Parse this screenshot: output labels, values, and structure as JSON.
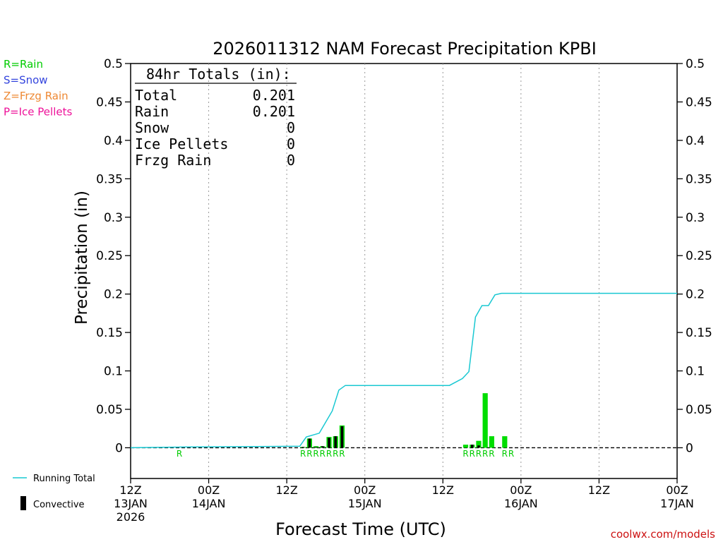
{
  "chart_data": {
    "type": "bar",
    "title": "2026011312 NAM Forecast Precipitation KPBI",
    "xlabel": "Forecast Time (UTC)",
    "ylabel": "Precipitation (in)",
    "ylim": [
      -0.04,
      0.5
    ],
    "yticks": [
      0,
      0.05,
      0.1,
      0.15,
      0.2,
      0.25,
      0.3,
      0.35,
      0.4,
      0.45,
      0.5
    ],
    "ytick_labels": [
      "0",
      "0.05",
      "0.1",
      "0.15",
      "0.2",
      "0.25",
      "0.3",
      "0.35",
      "0.4",
      "0.45",
      "0.5"
    ],
    "xlim_hours": [
      0,
      84
    ],
    "xticks": [
      {
        "hour": 0,
        "time": "12Z",
        "date": "13JAN",
        "year": "2026"
      },
      {
        "hour": 12,
        "time": "00Z",
        "date": "14JAN",
        "year": ""
      },
      {
        "hour": 24,
        "time": "12Z",
        "date": "",
        "year": ""
      },
      {
        "hour": 36,
        "time": "00Z",
        "date": "15JAN",
        "year": ""
      },
      {
        "hour": 48,
        "time": "12Z",
        "date": "",
        "year": ""
      },
      {
        "hour": 60,
        "time": "00Z",
        "date": "16JAN",
        "year": ""
      },
      {
        "hour": 72,
        "time": "12Z",
        "date": "",
        "year": ""
      },
      {
        "hour": 84,
        "time": "00Z",
        "date": "17JAN",
        "year": ""
      }
    ],
    "grid": "vertical dotted at 12-hour intervals",
    "bars": {
      "hours": [
        27,
        28,
        29,
        30,
        31,
        32,
        33,
        52,
        53,
        54,
        55,
        56,
        58
      ],
      "precip": [
        0.001,
        0.012,
        0.002,
        0.002,
        0.014,
        0.015,
        0.029,
        0.004,
        0.004,
        0.009,
        0.071,
        0.015,
        0.015
      ],
      "convective": [
        0.001,
        0.012,
        0.001,
        0.002,
        0.013,
        0.015,
        0.028,
        0.0,
        0.004,
        0.003,
        0.0,
        0.0,
        0.0
      ]
    },
    "running_total": {
      "hours": [
        0,
        8,
        26,
        27,
        29,
        31,
        32,
        33,
        36,
        49,
        51,
        52,
        53,
        54,
        55,
        56,
        57,
        58,
        84
      ],
      "values": [
        0.0,
        0.001,
        0.002,
        0.014,
        0.019,
        0.048,
        0.075,
        0.081,
        0.081,
        0.081,
        0.09,
        0.099,
        0.17,
        0.185,
        0.185,
        0.199,
        0.201,
        0.201,
        0.201
      ]
    },
    "ptype_markers": [
      {
        "hour": 8,
        "letter": "R"
      },
      {
        "hour": 27,
        "letter": "R"
      },
      {
        "hour": 28,
        "letter": "R"
      },
      {
        "hour": 29,
        "letter": "R"
      },
      {
        "hour": 30,
        "letter": "R"
      },
      {
        "hour": 31,
        "letter": "R"
      },
      {
        "hour": 32,
        "letter": "R"
      },
      {
        "hour": 33,
        "letter": "R"
      },
      {
        "hour": 52,
        "letter": "R"
      },
      {
        "hour": 53,
        "letter": "R"
      },
      {
        "hour": 54,
        "letter": "R"
      },
      {
        "hour": 55,
        "letter": "R"
      },
      {
        "hour": 56,
        "letter": "R"
      },
      {
        "hour": 58,
        "letter": "R"
      },
      {
        "hour": 59,
        "letter": "R"
      }
    ],
    "totals_box": {
      "title": "84hr Totals (in):",
      "rows": [
        {
          "label": "Total",
          "value": "0.201"
        },
        {
          "label": "Rain",
          "value": "0.201"
        },
        {
          "label": "Snow",
          "value": "0"
        },
        {
          "label": "Ice Pellets",
          "value": "0"
        },
        {
          "label": "Frzg Rain",
          "value": "0"
        }
      ]
    },
    "type_legend": [
      {
        "text": "R=Rain",
        "color": "#00cc00"
      },
      {
        "text": "S=Snow",
        "color": "#3344dd"
      },
      {
        "text": "Z=Frzg Rain",
        "color": "#ee8833"
      },
      {
        "text": "P=Ice Pellets",
        "color": "#ee1199"
      }
    ],
    "series_legend": [
      {
        "text": "Running Total",
        "color": "#19c8d2"
      },
      {
        "text": "Convective",
        "color": "#000000"
      }
    ],
    "colors": {
      "bar": "#00dd00",
      "convective": "#000000",
      "running_total": "#19c8d2",
      "marker": "#00cc00",
      "grid": "#999999"
    }
  },
  "credit": "coolwx.com/models"
}
